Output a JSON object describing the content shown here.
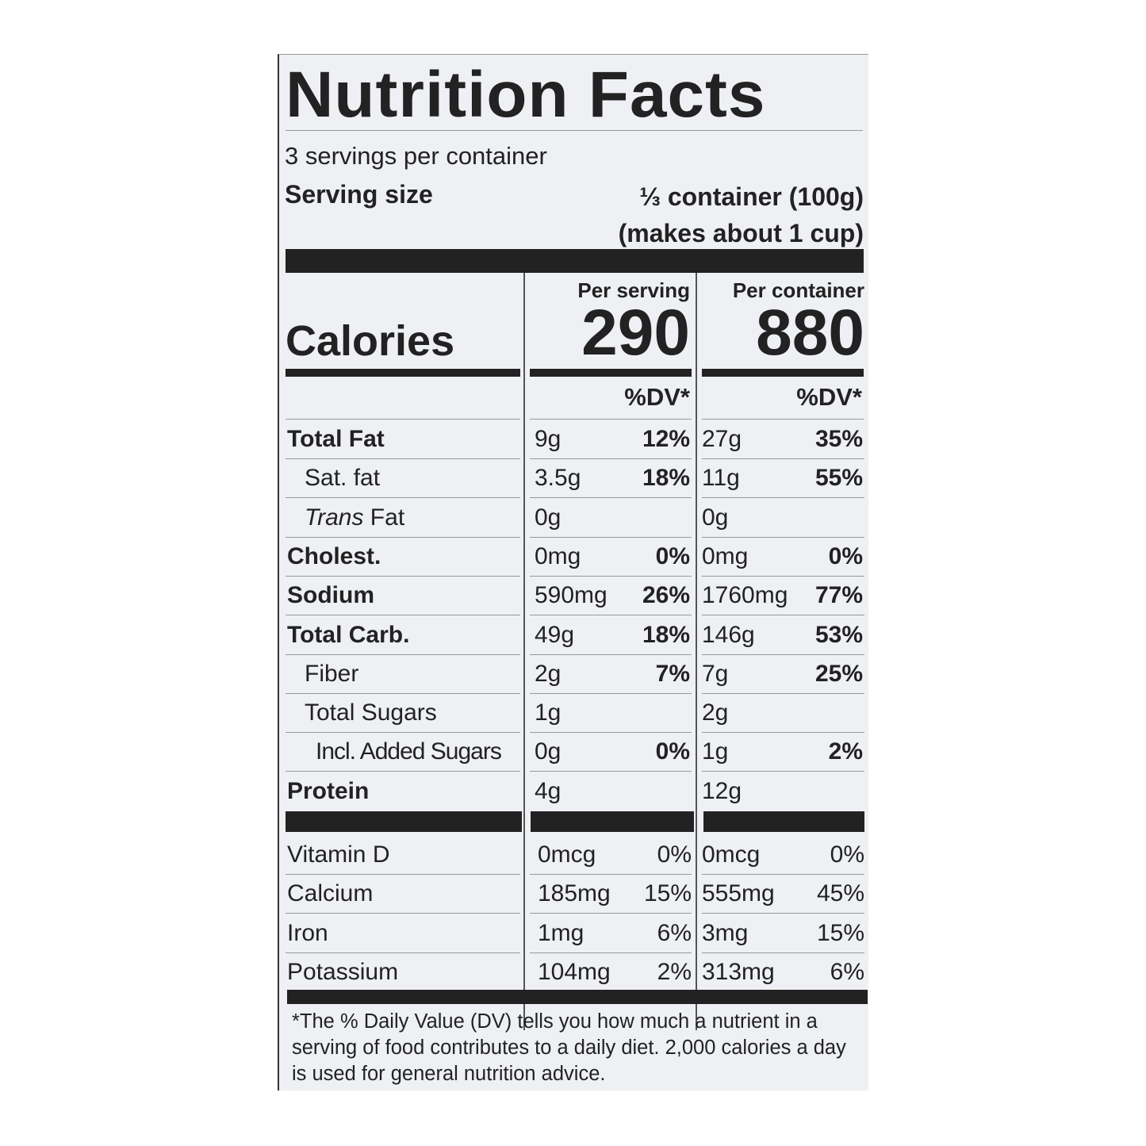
{
  "title": "Nutrition Facts",
  "servings_per_container": "3 servings per container",
  "serving_size": {
    "label": "Serving size",
    "value_line1": "⅓ container (100g)",
    "value_line2": "(makes about 1 cup)"
  },
  "columns": {
    "per_serving": "Per serving",
    "per_container": "Per container",
    "dv_header": "%DV*"
  },
  "calories": {
    "label": "Calories",
    "per_serving": "290",
    "per_container": "880"
  },
  "nutrients": [
    {
      "name": "Total Fat",
      "bold": true,
      "indent": 0,
      "s_amt": "9g",
      "s_dv": "12%",
      "c_amt": "27g",
      "c_dv": "35%"
    },
    {
      "name": "Sat. fat",
      "bold": false,
      "indent": 1,
      "s_amt": "3.5g",
      "s_dv": "18%",
      "c_amt": "11g",
      "c_dv": "55%"
    },
    {
      "name": "Trans Fat",
      "bold": false,
      "indent": 1,
      "italic_prefix": "Trans",
      "s_amt": "0g",
      "s_dv": "",
      "c_amt": "0g",
      "c_dv": ""
    },
    {
      "name": "Cholest.",
      "bold": true,
      "indent": 0,
      "s_amt": "0mg",
      "s_dv": "0%",
      "c_amt": "0mg",
      "c_dv": "0%"
    },
    {
      "name": "Sodium",
      "bold": true,
      "indent": 0,
      "s_amt": "590mg",
      "s_dv": "26%",
      "c_amt": "1760mg",
      "c_dv": "77%"
    },
    {
      "name": "Total Carb.",
      "bold": true,
      "indent": 0,
      "s_amt": "49g",
      "s_dv": "18%",
      "c_amt": "146g",
      "c_dv": "53%"
    },
    {
      "name": "Fiber",
      "bold": false,
      "indent": 1,
      "s_amt": "2g",
      "s_dv": "7%",
      "c_amt": "7g",
      "c_dv": "25%"
    },
    {
      "name": "Total Sugars",
      "bold": false,
      "indent": 1,
      "s_amt": "1g",
      "s_dv": "",
      "c_amt": "2g",
      "c_dv": ""
    },
    {
      "name": "Incl. Added Sugars",
      "bold": false,
      "indent": 2,
      "s_amt": "0g",
      "s_dv": "0%",
      "c_amt": "1g",
      "c_dv": "2%"
    },
    {
      "name": "Protein",
      "bold": true,
      "indent": 0,
      "s_amt": "4g",
      "s_dv": "",
      "c_amt": "12g",
      "c_dv": ""
    }
  ],
  "vitamins": [
    {
      "name": "Vitamin D",
      "s_amt": "0mcg",
      "s_dv": "0%",
      "c_amt": "0mcg",
      "c_dv": "0%"
    },
    {
      "name": "Calcium",
      "s_amt": "185mg",
      "s_dv": "15%",
      "c_amt": "555mg",
      "c_dv": "45%"
    },
    {
      "name": "Iron",
      "s_amt": "1mg",
      "s_dv": "6%",
      "c_amt": "3mg",
      "c_dv": "15%"
    },
    {
      "name": "Potassium",
      "s_amt": "104mg",
      "s_dv": "2%",
      "c_amt": "313mg",
      "c_dv": "6%"
    }
  ],
  "footnote": "*The % Daily Value (DV) tells you how much a nutrient in a serving of food contributes to a daily diet. 2,000 calories a day is used for general nutrition advice."
}
